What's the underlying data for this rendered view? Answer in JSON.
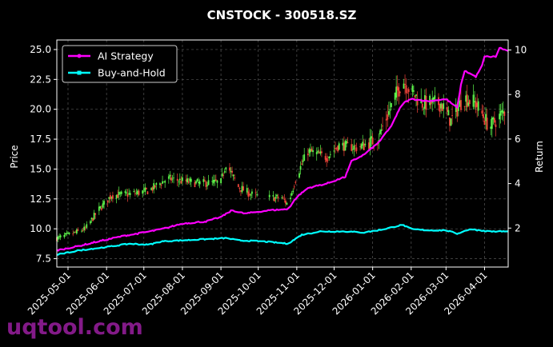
{
  "chart_data": {
    "type": "line",
    "title": "CNSTOCK - 300518.SZ",
    "ylabel": "Price",
    "ylabel_right": "Return",
    "xlabel": "",
    "x_start": "2025-04-22",
    "x_end": "2026-04-20",
    "ylim": [
      6.8,
      25.8
    ],
    "ylim_right": [
      0.25,
      10.45
    ],
    "grid": true,
    "legend_position": "top-left",
    "x_ticks": [
      "2025-05-01",
      "2025-06-01",
      "2025-07-01",
      "2025-08-01",
      "2025-09-01",
      "2025-10-01",
      "2025-11-01",
      "2025-12-01",
      "2026-01-01",
      "2026-02-01",
      "2026-03-01",
      "2026-04-01"
    ],
    "y_ticks": [
      "7.5",
      "10.0",
      "12.5",
      "15.0",
      "17.5",
      "20.0",
      "22.5",
      "25.0"
    ],
    "y_ticks_right": [
      "2",
      "4",
      "6",
      "8",
      "10"
    ],
    "price_anchors": [
      {
        "x": "2025-04-22",
        "y": 9.2
      },
      {
        "x": "2025-05-05",
        "y": 9.6
      },
      {
        "x": "2025-05-15",
        "y": 10.0
      },
      {
        "x": "2025-05-25",
        "y": 11.5
      },
      {
        "x": "2025-06-05",
        "y": 12.8
      },
      {
        "x": "2025-06-20",
        "y": 12.9
      },
      {
        "x": "2025-07-05",
        "y": 13.2
      },
      {
        "x": "2025-07-20",
        "y": 14.2
      },
      {
        "x": "2025-08-01",
        "y": 14.0
      },
      {
        "x": "2025-08-15",
        "y": 13.8
      },
      {
        "x": "2025-09-01",
        "y": 13.9
      },
      {
        "x": "2025-09-05",
        "y": 15.5
      },
      {
        "x": "2025-09-15",
        "y": 13.5
      },
      {
        "x": "2025-09-25",
        "y": 12.9
      },
      {
        "x": "2025-10-05",
        "y": 12.6
      },
      {
        "x": "2025-10-20",
        "y": 12.6
      },
      {
        "x": "2025-10-25",
        "y": 12.0
      },
      {
        "x": "2025-11-01",
        "y": 14.5
      },
      {
        "x": "2025-11-10",
        "y": 16.5
      },
      {
        "x": "2025-11-25",
        "y": 16.0
      },
      {
        "x": "2025-12-05",
        "y": 17.0
      },
      {
        "x": "2025-12-20",
        "y": 16.8
      },
      {
        "x": "2026-01-05",
        "y": 17.5
      },
      {
        "x": "2026-01-15",
        "y": 20.0
      },
      {
        "x": "2026-01-25",
        "y": 22.5
      },
      {
        "x": "2026-02-01",
        "y": 21.5
      },
      {
        "x": "2026-02-10",
        "y": 20.5
      },
      {
        "x": "2026-02-25",
        "y": 20.5
      },
      {
        "x": "2026-03-05",
        "y": 19.0
      },
      {
        "x": "2026-03-15",
        "y": 21.0
      },
      {
        "x": "2026-03-25",
        "y": 20.5
      },
      {
        "x": "2026-04-05",
        "y": 18.5
      },
      {
        "x": "2026-04-20",
        "y": 20.2
      }
    ],
    "series": [
      {
        "name": "AI Strategy",
        "color": "#ff00ff",
        "points": [
          {
            "x": "2025-04-22",
            "y": 1.0
          },
          {
            "x": "2025-05-10",
            "y": 1.2
          },
          {
            "x": "2025-05-25",
            "y": 1.4
          },
          {
            "x": "2025-06-15",
            "y": 1.65
          },
          {
            "x": "2025-07-01",
            "y": 1.8
          },
          {
            "x": "2025-07-15",
            "y": 1.95
          },
          {
            "x": "2025-08-01",
            "y": 2.2
          },
          {
            "x": "2025-08-20",
            "y": 2.3
          },
          {
            "x": "2025-09-01",
            "y": 2.5
          },
          {
            "x": "2025-09-10",
            "y": 2.8
          },
          {
            "x": "2025-09-20",
            "y": 2.65
          },
          {
            "x": "2025-10-10",
            "y": 2.8
          },
          {
            "x": "2025-10-25",
            "y": 2.85
          },
          {
            "x": "2025-11-01",
            "y": 3.4
          },
          {
            "x": "2025-11-10",
            "y": 3.8
          },
          {
            "x": "2025-11-25",
            "y": 4.0
          },
          {
            "x": "2025-12-10",
            "y": 4.3
          },
          {
            "x": "2025-12-15",
            "y": 5.0
          },
          {
            "x": "2025-12-25",
            "y": 5.3
          },
          {
            "x": "2026-01-05",
            "y": 5.8
          },
          {
            "x": "2026-01-15",
            "y": 6.5
          },
          {
            "x": "2026-01-25",
            "y": 7.6
          },
          {
            "x": "2026-02-01",
            "y": 7.8
          },
          {
            "x": "2026-02-15",
            "y": 7.7
          },
          {
            "x": "2026-03-01",
            "y": 7.8
          },
          {
            "x": "2026-03-10",
            "y": 7.4
          },
          {
            "x": "2026-03-15",
            "y": 9.1
          },
          {
            "x": "2026-03-25",
            "y": 8.8
          },
          {
            "x": "2026-03-30",
            "y": 9.3
          },
          {
            "x": "2026-04-01",
            "y": 9.7
          },
          {
            "x": "2026-04-10",
            "y": 9.7
          },
          {
            "x": "2026-04-13",
            "y": 10.1
          },
          {
            "x": "2026-04-20",
            "y": 9.95
          }
        ]
      },
      {
        "name": "Buy-and-Hold",
        "color": "#00ffff",
        "points": [
          {
            "x": "2025-04-22",
            "y": 0.8
          },
          {
            "x": "2025-05-10",
            "y": 1.0
          },
          {
            "x": "2025-06-01",
            "y": 1.15
          },
          {
            "x": "2025-06-20",
            "y": 1.3
          },
          {
            "x": "2025-07-05",
            "y": 1.25
          },
          {
            "x": "2025-07-15",
            "y": 1.4
          },
          {
            "x": "2025-08-01",
            "y": 1.45
          },
          {
            "x": "2025-08-20",
            "y": 1.5
          },
          {
            "x": "2025-09-05",
            "y": 1.55
          },
          {
            "x": "2025-09-15",
            "y": 1.45
          },
          {
            "x": "2025-10-05",
            "y": 1.4
          },
          {
            "x": "2025-10-25",
            "y": 1.3
          },
          {
            "x": "2025-11-05",
            "y": 1.7
          },
          {
            "x": "2025-11-20",
            "y": 1.85
          },
          {
            "x": "2025-12-10",
            "y": 1.85
          },
          {
            "x": "2025-12-25",
            "y": 1.8
          },
          {
            "x": "2026-01-10",
            "y": 1.95
          },
          {
            "x": "2026-01-25",
            "y": 2.15
          },
          {
            "x": "2026-02-01",
            "y": 1.95
          },
          {
            "x": "2026-02-15",
            "y": 1.9
          },
          {
            "x": "2026-03-01",
            "y": 1.9
          },
          {
            "x": "2026-03-10",
            "y": 1.75
          },
          {
            "x": "2026-03-20",
            "y": 1.95
          },
          {
            "x": "2026-04-05",
            "y": 1.85
          },
          {
            "x": "2026-04-20",
            "y": 1.85
          }
        ]
      }
    ]
  },
  "watermark": "uqtool.com"
}
